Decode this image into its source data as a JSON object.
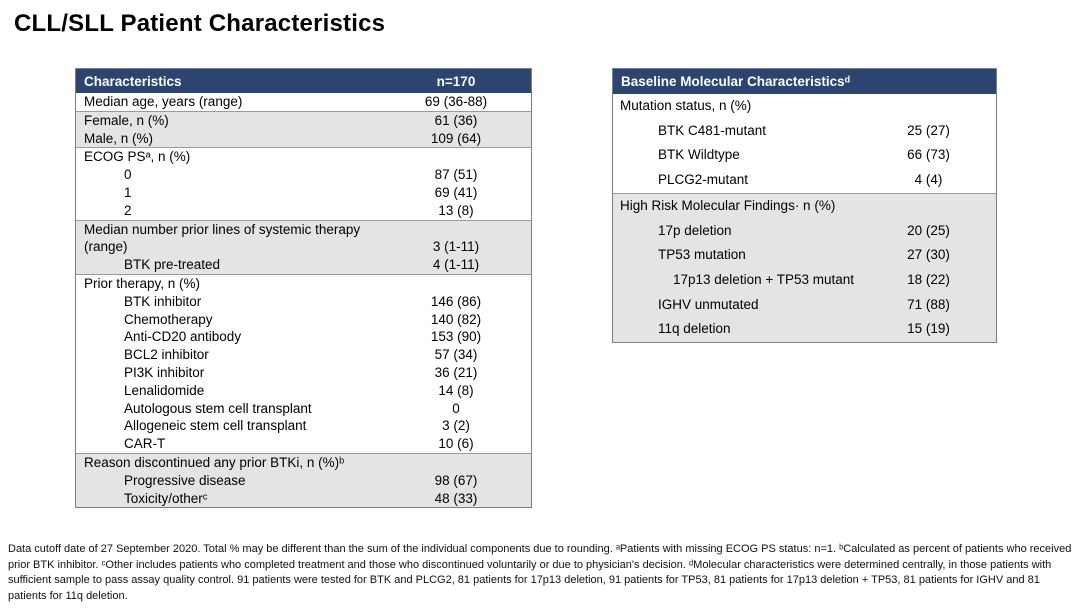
{
  "title": "CLL/SLL Patient Characteristics",
  "colors": {
    "header_bg": "#2b4470",
    "header_text": "#ffffff",
    "row_shaded": "#e4e4e4",
    "border_outer": "#7f7f7f",
    "border_divider": "#9a9a9a",
    "title_color": "#000000"
  },
  "characteristics_table": {
    "header": {
      "label": "Characteristics",
      "value": "n=170"
    },
    "groups": [
      {
        "shaded": false,
        "rows": [
          {
            "label": "Median age, years (range)",
            "value": "69 (36-88)"
          }
        ]
      },
      {
        "shaded": true,
        "rows": [
          {
            "label": "Female, n (%)",
            "value": "61 (36)"
          },
          {
            "label": "Male, n (%)",
            "value": "109 (64)"
          }
        ]
      },
      {
        "shaded": false,
        "rows": [
          {
            "label": "ECOG PSᵃ, n (%)",
            "value": ""
          },
          {
            "label": "0",
            "value": "87 (51)"
          },
          {
            "label": "1",
            "value": "69 (41)"
          },
          {
            "label": "2",
            "value": "13 (8)"
          }
        ]
      },
      {
        "shaded": true,
        "rows": [
          {
            "label": "Median number prior lines of systemic therapy",
            "value": ""
          },
          {
            "label": "(range)",
            "value": "3 (1-11)"
          },
          {
            "label": "BTK pre-treated",
            "value": "4 (1-11)"
          }
        ]
      },
      {
        "shaded": false,
        "rows": [
          {
            "label": "Prior therapy, n (%)",
            "value": ""
          },
          {
            "label": "BTK inhibitor",
            "value": "146 (86)"
          },
          {
            "label": "Chemotherapy",
            "value": "140 (82)"
          },
          {
            "label": "Anti-CD20 antibody",
            "value": "153 (90)"
          },
          {
            "label": "BCL2 inhibitor",
            "value": "57 (34)"
          },
          {
            "label": "PI3K inhibitor",
            "value": "36 (21)"
          },
          {
            "label": "Lenalidomide",
            "value": "14 (8)"
          },
          {
            "label": "Autologous stem cell transplant",
            "value": "0"
          },
          {
            "label": "Allogeneic stem cell transplant",
            "value": "3 (2)"
          },
          {
            "label": "CAR-T",
            "value": "10 (6)"
          }
        ]
      },
      {
        "shaded": true,
        "rows": [
          {
            "label": "Reason discontinued any prior BTKi, n (%)ᵇ",
            "value": ""
          },
          {
            "label": "Progressive disease",
            "value": "98 (67)"
          },
          {
            "label": "Toxicity/otherᶜ",
            "value": "48 (33)"
          }
        ]
      }
    ]
  },
  "molecular_table": {
    "header": {
      "label": "Baseline Molecular Characteristicsᵈ"
    },
    "groups": [
      {
        "shaded": false,
        "rows": [
          {
            "label": "Mutation status, n (%)",
            "value": ""
          },
          {
            "label": "BTK C481-mutant",
            "value": "25 (27)"
          },
          {
            "label": "BTK Wildtype",
            "value": "66 (73)"
          },
          {
            "label": "PLCG2-mutant",
            "value": "4 (4)"
          }
        ]
      },
      {
        "shaded": true,
        "rows": [
          {
            "label": "High Risk Molecular Findings· n (%)",
            "value": ""
          },
          {
            "label": "17p deletion",
            "value": "20 (25)"
          },
          {
            "label": "TP53 mutation",
            "value": "27 (30)"
          },
          {
            "label": "17p13 deletion + TP53 mutant",
            "value": "18 (22)"
          },
          {
            "label": "IGHV unmutated",
            "value": "71 (88)"
          },
          {
            "label": "11q deletion",
            "value": "15 (19)"
          }
        ]
      }
    ]
  },
  "footnote": "Data cutoff date of 27 September 2020. Total % may be different than the sum of the individual components due to rounding. ᵃPatients with missing ECOG PS status: n=1. ᵇCalculated as percent of patients who received prior BTK inhibitor. ᶜOther includes patients who completed treatment and those who discontinued voluntarily or due to physician's decision. ᵈMolecular characteristics were determined centrally, in those patients with sufficient sample to pass assay quality control. 91 patients were tested for BTK and PLCG2, 81 patients for 17p13 deletion, 91 patients for TP53, 81 patients for 17p13 deletion + TP53, 81 patients for IGHV and 81 patients for 11q deletion."
}
